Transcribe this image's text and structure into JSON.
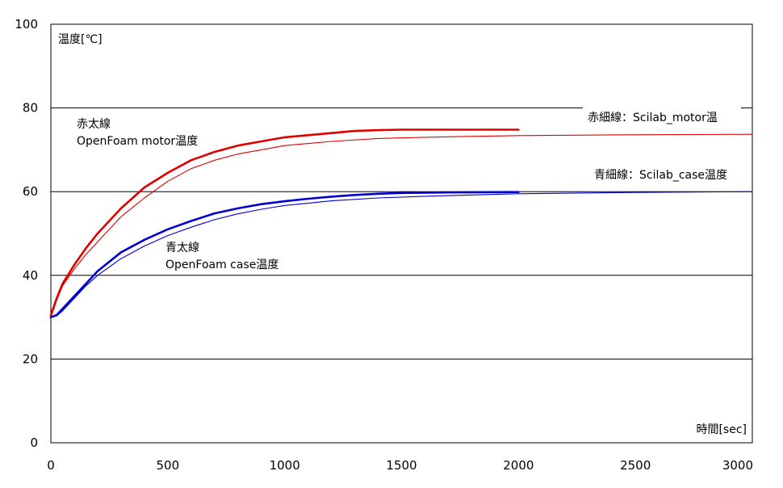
{
  "chart_data": {
    "type": "line",
    "ylabel": "温度[℃]",
    "xlabel": "時間[sec]",
    "xlim": [
      0,
      3000
    ],
    "ylim": [
      0,
      100
    ],
    "xticks": [
      0,
      500,
      1000,
      1500,
      2000,
      2500,
      3000
    ],
    "yticks": [
      0,
      20,
      40,
      60,
      80,
      100
    ],
    "grid": "horizontal",
    "series": [
      {
        "name": "OpenFoam motor温度",
        "color": "#e00000",
        "style": "thick",
        "x": [
          0,
          25,
          50,
          100,
          150,
          200,
          300,
          400,
          500,
          600,
          700,
          800,
          900,
          1000,
          1100,
          1200,
          1300,
          1400,
          1500,
          1700,
          2000
        ],
        "y": [
          30.5,
          34.5,
          38,
          42.5,
          46.5,
          50,
          56,
          61,
          64.5,
          67.5,
          69.5,
          71,
          72,
          73,
          73.5,
          74,
          74.5,
          74.7,
          74.8,
          74.8,
          74.8
        ]
      },
      {
        "name": "Scilab_motor温",
        "color": "#e00000",
        "style": "thin",
        "x": [
          0,
          25,
          50,
          100,
          150,
          200,
          300,
          400,
          500,
          600,
          700,
          800,
          900,
          1000,
          1200,
          1400,
          1600,
          1800,
          2000,
          2500,
          3000
        ],
        "y": [
          30,
          34,
          37.5,
          41.5,
          45,
          48,
          54,
          58.5,
          62.5,
          65.5,
          67.5,
          69,
          70,
          71,
          72,
          72.7,
          73,
          73.2,
          73.4,
          73.6,
          73.7
        ]
      },
      {
        "name": "OpenFoam case温度",
        "color": "#0000d0",
        "style": "thick",
        "x": [
          0,
          25,
          50,
          100,
          150,
          200,
          300,
          400,
          500,
          600,
          700,
          800,
          900,
          1000,
          1100,
          1200,
          1300,
          1400,
          1500,
          1700,
          2000
        ],
        "y": [
          30,
          30.5,
          32,
          35,
          38,
          41,
          45.5,
          48.5,
          51,
          53,
          54.8,
          56,
          57,
          57.7,
          58.3,
          58.8,
          59.2,
          59.5,
          59.7,
          59.8,
          59.9
        ]
      },
      {
        "name": "Scilab_case温度",
        "color": "#0000d0",
        "style": "thin",
        "x": [
          0,
          25,
          50,
          100,
          150,
          200,
          300,
          400,
          500,
          600,
          700,
          800,
          900,
          1000,
          1200,
          1400,
          1600,
          1800,
          2000,
          2500,
          3000
        ],
        "y": [
          30,
          30.3,
          31.5,
          34.5,
          37.5,
          40,
          44,
          47,
          49.5,
          51.5,
          53.3,
          54.7,
          55.8,
          56.7,
          57.8,
          58.5,
          58.9,
          59.2,
          59.5,
          59.8,
          60
        ]
      }
    ],
    "annotations": {
      "red_thick_line1": "赤太線",
      "red_thick_line2": "OpenFoam  motor温度",
      "red_thin": "赤細線：Scilab_motor温",
      "blue_thin": "青細線：Scilab_case温度",
      "blue_thick_line1": "青太線",
      "blue_thick_line2": "OpenFoam  case温度"
    }
  }
}
